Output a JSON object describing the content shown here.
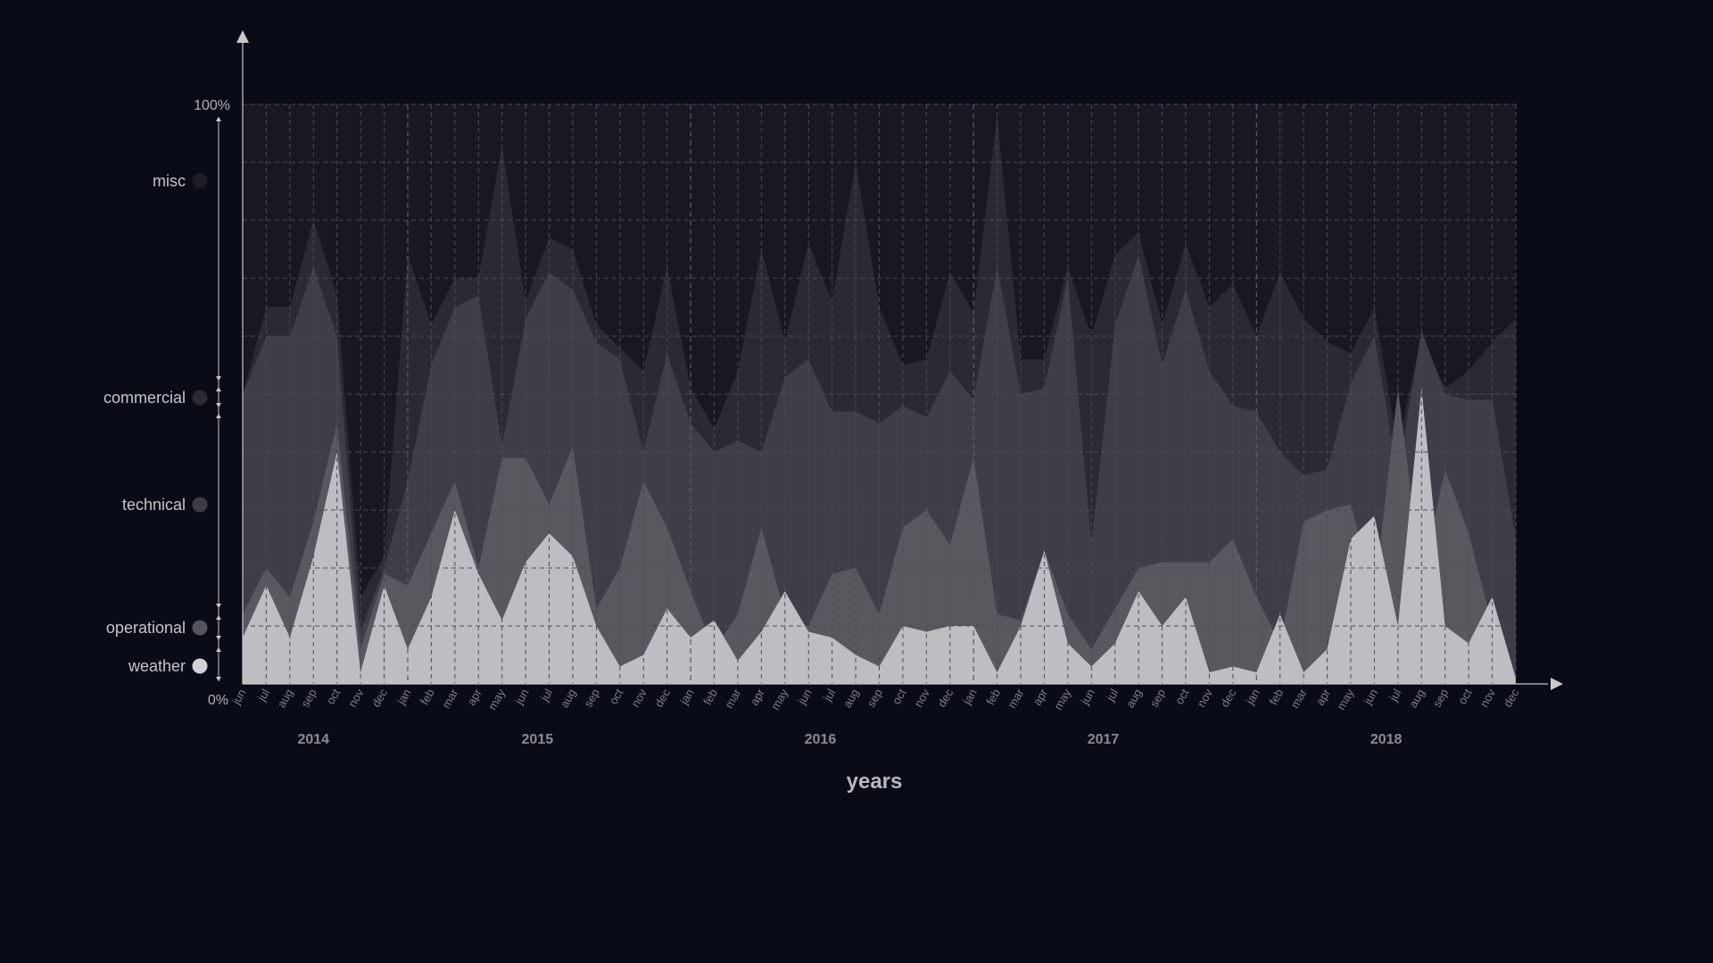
{
  "chart_data": {
    "type": "area",
    "stacked": true,
    "xlabel": "years",
    "y_ticks": [
      "100%",
      "0%"
    ],
    "months": [
      "jun",
      "jul",
      "aug",
      "sep",
      "oct",
      "nov",
      "dec",
      "jan",
      "feb",
      "mar",
      "apr",
      "may",
      "jun",
      "jul",
      "aug",
      "sep",
      "oct",
      "nov",
      "dec",
      "jan",
      "feb",
      "mar",
      "apr",
      "may",
      "jun",
      "jul",
      "aug",
      "sep",
      "oct",
      "nov",
      "dec",
      "jan",
      "feb",
      "mar",
      "apr",
      "may",
      "jun",
      "jul",
      "aug",
      "sep",
      "oct",
      "nov",
      "dec",
      "jan",
      "feb",
      "mar",
      "apr",
      "may",
      "jun",
      "jul",
      "aug",
      "sep",
      "oct",
      "nov",
      "dec"
    ],
    "years": [
      {
        "label": "2014",
        "start": 0,
        "end": 6
      },
      {
        "label": "2015",
        "start": 7,
        "end": 18
      },
      {
        "label": "2016",
        "start": 19,
        "end": 30
      },
      {
        "label": "2017",
        "start": 31,
        "end": 42
      },
      {
        "label": "2018",
        "start": 43,
        "end": 54
      }
    ],
    "ylim": [
      0,
      100
    ],
    "legend_position": "left",
    "series": [
      {
        "name": "weather",
        "color": "#bdbdc2",
        "cumulative": [
          8,
          17,
          8,
          22,
          40,
          2,
          17,
          6,
          15,
          30,
          19,
          11,
          21,
          26,
          22,
          10,
          3,
          5,
          13,
          8,
          11,
          4,
          9,
          16,
          9,
          8,
          5,
          3,
          10,
          9,
          10,
          10,
          2,
          10,
          23,
          7,
          3,
          7,
          16,
          10,
          15,
          2,
          3,
          2,
          12,
          2,
          6,
          25,
          29,
          10,
          51,
          10,
          7,
          15,
          1
        ]
      },
      {
        "name": "operational",
        "color": "#58585f",
        "cumulative": [
          12,
          20,
          15,
          28,
          45,
          6,
          19,
          17,
          26,
          35,
          20,
          39,
          39,
          31,
          41,
          13,
          20,
          35,
          27,
          16,
          6,
          12,
          27,
          12,
          10,
          19,
          20,
          12,
          27,
          30,
          24,
          39,
          12,
          11,
          23,
          12,
          6,
          13,
          20,
          21,
          21,
          21,
          25,
          15,
          7,
          28,
          30,
          31,
          15,
          51,
          18,
          37,
          26,
          10,
          1
        ]
      },
      {
        "name": "technical",
        "color": "#3f3e48",
        "cumulative": [
          50,
          60,
          60,
          72,
          60,
          9,
          20,
          35,
          55,
          65,
          67,
          41,
          63,
          71,
          68,
          59,
          56,
          40,
          57,
          45,
          40,
          42,
          40,
          53,
          56,
          47,
          47,
          45,
          48,
          46,
          54,
          49,
          72,
          50,
          51,
          70,
          24,
          62,
          74,
          55,
          68,
          54,
          48,
          47,
          40,
          36,
          37,
          52,
          60,
          36,
          61,
          50,
          49,
          49,
          25
        ]
      },
      {
        "name": "commercial",
        "color": "#2a2a35",
        "cumulative": [
          50,
          65,
          65,
          80,
          67,
          15,
          22,
          74,
          62,
          70,
          70,
          93,
          66,
          77,
          75,
          62,
          58,
          54,
          72,
          51,
          44,
          54,
          75,
          59,
          76,
          66,
          90,
          65,
          55,
          56,
          71,
          64,
          98,
          56,
          56,
          72,
          60,
          74,
          78,
          62,
          76,
          65,
          69,
          60,
          71,
          63,
          59,
          57,
          65,
          41,
          60,
          51,
          54,
          59,
          63
        ]
      },
      {
        "name": "misc",
        "color": "#171822",
        "cumulative": [
          100,
          100,
          100,
          100,
          100,
          100,
          100,
          100,
          100,
          100,
          100,
          100,
          100,
          100,
          100,
          100,
          100,
          100,
          100,
          100,
          100,
          100,
          100,
          100,
          100,
          100,
          100,
          100,
          100,
          100,
          100,
          100,
          100,
          100,
          100,
          100,
          100,
          100,
          100,
          100,
          100,
          100,
          100,
          100,
          100,
          100,
          100,
          100,
          100,
          100,
          100,
          100,
          100,
          100,
          100
        ]
      }
    ]
  },
  "legend": {
    "weather": {
      "label": "weather",
      "color": "#d2d2d6"
    },
    "operational": {
      "label": "operational",
      "color": "#55555c"
    },
    "technical": {
      "label": "technical",
      "color": "#3c3c45"
    },
    "commercial": {
      "label": "commercial",
      "color": "#2a2a33"
    },
    "misc": {
      "label": "misc",
      "color": "#1b1c25"
    }
  }
}
